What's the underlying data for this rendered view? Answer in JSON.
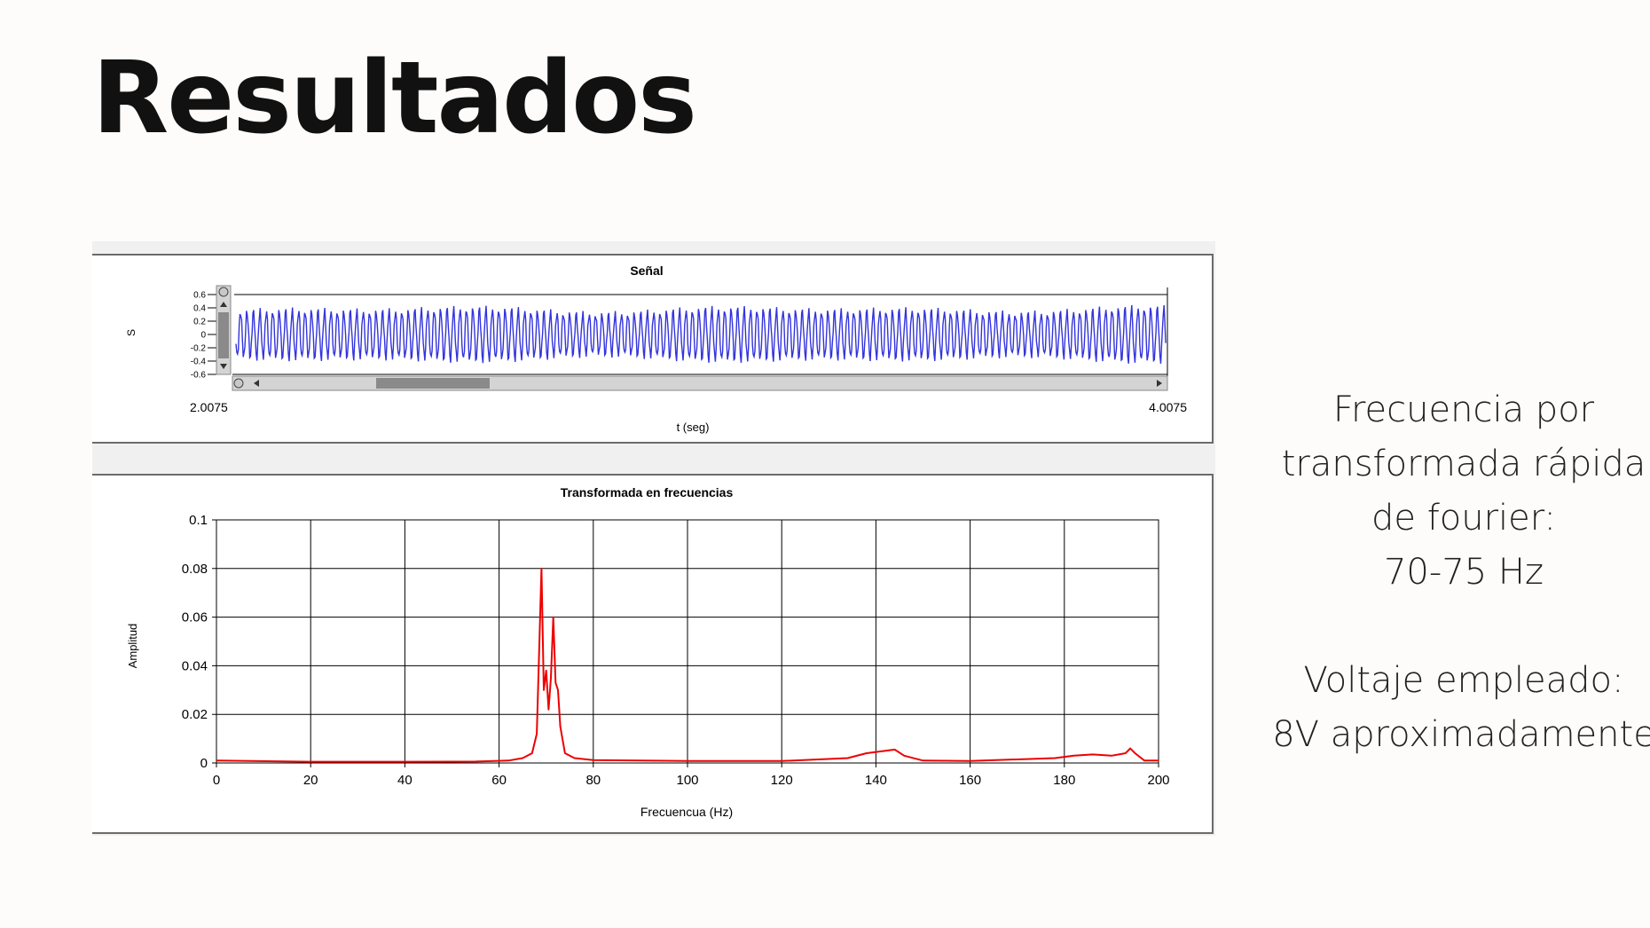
{
  "slide": {
    "title": "Resultados",
    "side_lines": [
      "Frecuencia por",
      "transformada rápida",
      "de fourier:",
      "70-75 Hz",
      "Voltaje empleado:",
      "8V aproximadamente"
    ]
  },
  "colors": {
    "signal": "#3333dd",
    "spectrum": "#ee0000",
    "grid": "#000000"
  },
  "chart_data": [
    {
      "type": "line",
      "title": "Señal",
      "xlabel": "t (seg)",
      "ylabel": "S",
      "x_tick_labels": [
        "2.0075",
        "4.0075"
      ],
      "y_tick_labels": [
        "0.6",
        "0.4",
        "0.2",
        "0",
        "-0.2",
        "-0.4",
        "-0.6"
      ],
      "xlim": [
        2.0075,
        4.0075
      ],
      "ylim": [
        -0.6,
        0.6
      ],
      "series": [
        {
          "amplitude": 0.36,
          "frequency_hz": 72,
          "envelope_min": 0.3,
          "envelope_max": 0.4
        }
      ],
      "grid": false
    },
    {
      "type": "line",
      "title": "Transformada en frecuencias",
      "xlabel": "Frecuencua (Hz)",
      "ylabel": "Amplitud",
      "x_ticks": [
        0,
        20,
        40,
        60,
        80,
        100,
        120,
        140,
        160,
        180,
        200
      ],
      "y_ticks": [
        0,
        0.02,
        0.04,
        0.06,
        0.08,
        0.1
      ],
      "y_tick_labels": [
        "0",
        "0.02",
        "0.04",
        "0.06",
        "0.08",
        "0.1"
      ],
      "xlim": [
        0,
        200
      ],
      "ylim": [
        0,
        0.1
      ],
      "grid": true,
      "series": [
        {
          "x": [
            0,
            20,
            40,
            55,
            62,
            65,
            67,
            68,
            68.5,
            69,
            69.5,
            70,
            70.5,
            71,
            71.5,
            72,
            72.5,
            73,
            74,
            76,
            80,
            100,
            120,
            134,
            138,
            142,
            144,
            146,
            150,
            160,
            178,
            182,
            186,
            190,
            193,
            194,
            195,
            197,
            200
          ],
          "y": [
            0.001,
            0.0005,
            0.0005,
            0.0006,
            0.001,
            0.002,
            0.004,
            0.012,
            0.045,
            0.08,
            0.03,
            0.038,
            0.022,
            0.035,
            0.06,
            0.033,
            0.03,
            0.015,
            0.004,
            0.002,
            0.0012,
            0.0008,
            0.0008,
            0.002,
            0.004,
            0.005,
            0.0055,
            0.003,
            0.001,
            0.0008,
            0.002,
            0.003,
            0.0035,
            0.003,
            0.004,
            0.006,
            0.004,
            0.001,
            0.001
          ]
        }
      ]
    }
  ]
}
